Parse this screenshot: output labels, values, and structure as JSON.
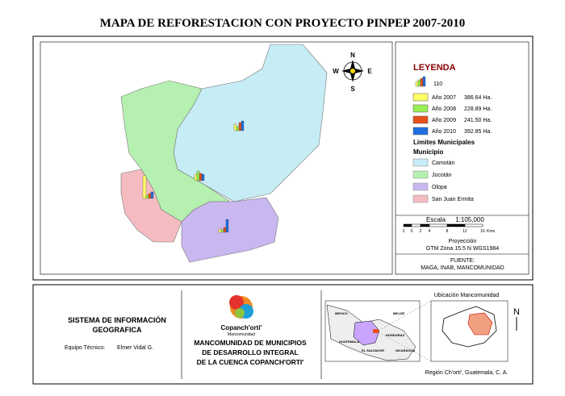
{
  "title": "MAPA DE REFORESTACION CON PROYECTO PINPEP 2007-2010",
  "compass": {
    "n": "N",
    "s": "S",
    "e": "E",
    "w": "W"
  },
  "legend": {
    "title": "LEYENDA",
    "symbol_label": "110",
    "years": [
      {
        "label": "Año 2007",
        "area": "386.64 Ha."
      },
      {
        "label": "Año 2008",
        "area": "228.89 Ha."
      },
      {
        "label": "Año 2009",
        "area": "241.50 Ha."
      },
      {
        "label": "Año 2010",
        "area": "392.85 Ha."
      }
    ],
    "limits_title": "Limites Municipales",
    "municipio_title": "Municipio",
    "municipios": [
      "Camotán",
      "Jocotán",
      "Olopa",
      "San Juan Ermita"
    ]
  },
  "scale": {
    "title": "Escala",
    "ratio": "1:105,000",
    "ticks": [
      "2",
      "0",
      "2",
      "4",
      "8",
      "12",
      "16"
    ],
    "unit": "Kms"
  },
  "projection": {
    "title": "Proyección",
    "text": "GTM Zona 15.5 N WGS1984"
  },
  "source": {
    "title": "FUENTE:",
    "text": "MAGA, INAB, MANCOMUNIDAD"
  },
  "footer": {
    "system_title": [
      "SISTEMA DE INFORMACIÓN",
      "GEOGRAFICA"
    ],
    "team_label": "Equipo Técnico:",
    "team_name": "Elmer Vidal G.",
    "logo_name": "Copanch'orti'",
    "logo_sub": "Mancomunidad",
    "org": [
      "MANCOMUNIDAD DE MUNICIPIOS",
      "DE DESARROLLO INTEGRAL",
      "DE LA CUENCA COPANCH'ORTI'"
    ],
    "location_title": "Ubicación Mancomunidad",
    "countries": [
      "MEXICO",
      "BELIZE",
      "HONDURAS",
      "GUATEMALA",
      "EL SALVADOR",
      "NICARAGUA"
    ],
    "north": "N",
    "region": "Región Ch'orti', Guatemala, C. A."
  }
}
